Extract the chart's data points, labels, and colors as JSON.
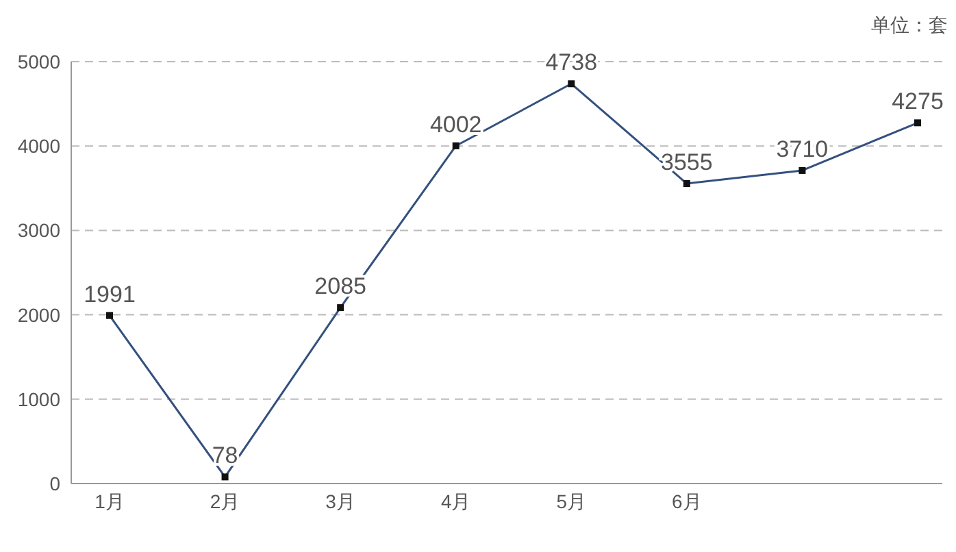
{
  "chart_data": {
    "type": "line",
    "categories": [
      "1月",
      "2月",
      "3月",
      "4月",
      "5月",
      "6月",
      null,
      null
    ],
    "series": [
      {
        "color": "#34507f",
        "values": [
          1991,
          78,
          2085,
          4002,
          4738,
          3555,
          3710,
          4275
        ]
      }
    ],
    "ylim": [
      0,
      5000
    ],
    "yticks": [
      0,
      1000,
      2000,
      3000,
      4000,
      5000
    ],
    "grid": "y",
    "marker": "square",
    "line_style": "solid",
    "data_labels": true,
    "annotations": [
      "单位：套"
    ]
  }
}
